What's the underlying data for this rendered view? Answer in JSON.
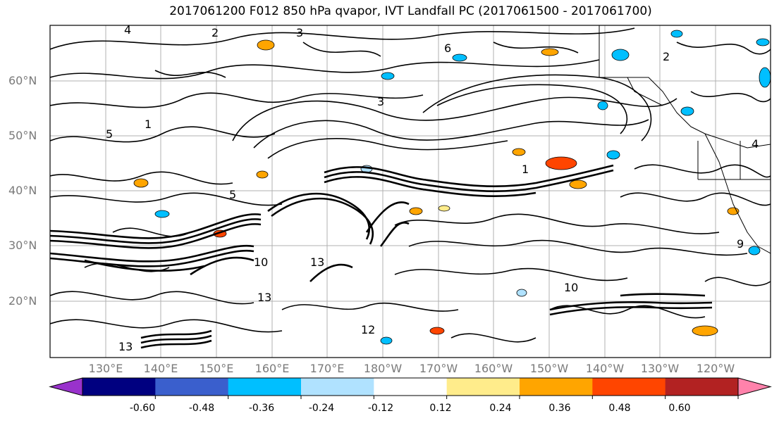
{
  "title": "2017061200 F012 850 hPa qvapor, IVT Landfall PC (2017061500 - 2017061700)",
  "map": {
    "lat_labels": [
      "60°N",
      "50°N",
      "40°N",
      "30°N",
      "20°N"
    ],
    "lon_labels": [
      "130°E",
      "140°E",
      "150°E",
      "160°E",
      "170°E",
      "180°W",
      "170°W",
      "160°W",
      "150°W",
      "140°W",
      "130°W",
      "120°W"
    ],
    "contour_labels": [
      "4",
      "3",
      "2",
      "6",
      "5",
      "3",
      "10",
      "13",
      "1",
      "9",
      "12",
      "13",
      "4",
      "10",
      "13",
      "2",
      "1",
      "5"
    ],
    "contour_color": "#000000",
    "lat_range": [
      10,
      70
    ],
    "lon_range": [
      122,
      250
    ]
  },
  "colorbar": {
    "ticks": [
      "-0.60",
      "-0.48",
      "-0.36",
      "-0.24",
      "-0.12",
      "0.12",
      "0.24",
      "0.36",
      "0.48",
      "0.60"
    ],
    "colors": [
      "#9932cc",
      "#000080",
      "#3a5fcd",
      "#00bfff",
      "#b0e2ff",
      "#ffffff",
      "#ffec8b",
      "#ffa500",
      "#ff4500",
      "#b22222",
      "#ff82ab"
    ]
  }
}
